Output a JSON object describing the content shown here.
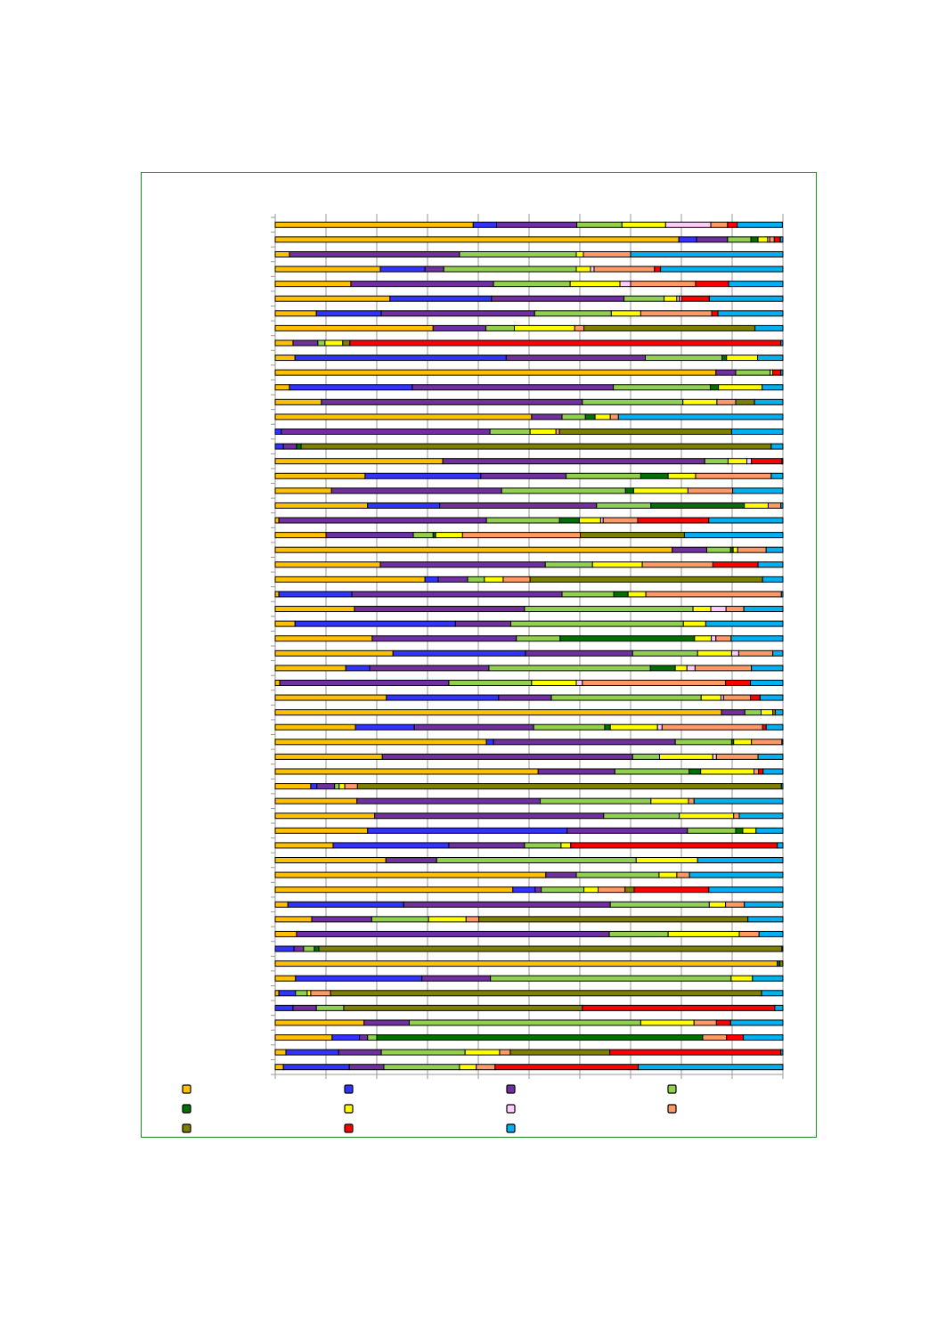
{
  "chart_data": {
    "type": "stacked-bar-horizontal-percent",
    "categories": [
      null,
      null,
      null,
      null,
      null,
      null,
      null,
      null,
      null,
      null,
      null,
      null,
      null,
      null,
      null,
      null,
      null,
      null,
      null,
      null,
      null,
      null,
      null,
      null,
      null,
      null,
      null,
      null,
      null,
      null,
      null,
      null,
      null,
      null,
      null,
      null,
      null,
      null,
      null,
      null,
      null,
      null,
      null,
      null,
      null,
      null,
      null,
      null,
      null,
      null,
      null,
      null,
      null,
      null,
      null,
      null,
      null,
      null
    ],
    "series": [
      {
        "color": "#FFC000",
        "values": [
          39,
          79.5,
          2.8,
          20.7,
          14.9,
          22.6,
          8.1,
          31.1,
          3.5,
          3.9,
          86.8,
          2.8,
          9.1,
          50.5,
          0,
          0,
          33,
          17.7,
          11.1,
          18.2,
          0.7,
          10,
          78.2,
          20.7,
          29.5,
          0.7,
          15.6,
          3.9,
          19.1,
          23.2,
          13.9,
          0.9,
          21.9,
          87.9,
          15.8,
          41.6,
          21.1,
          51.8,
          7,
          16.1,
          19.6,
          18.2,
          11.4,
          21.8,
          53.3,
          46.8,
          2.5,
          7.2,
          4.2,
          0,
          98.9,
          4,
          0.7,
          0,
          17.5,
          11.2,
          2.1,
          1.6
        ]
      },
      {
        "color": "#3333FF",
        "values": [
          4.6,
          3.5,
          0,
          8.8,
          0,
          20,
          12.8,
          0,
          0,
          41.6,
          0,
          24.2,
          0,
          0,
          1.2,
          1.6,
          0,
          22.8,
          0,
          14.2,
          0,
          0,
          0,
          0,
          2.6,
          14.4,
          0,
          31.6,
          0,
          26.1,
          4.7,
          0,
          22.1,
          0,
          11.6,
          1.4,
          0,
          0,
          1.2,
          0,
          0,
          39.3,
          22.8,
          0,
          0,
          4.4,
          22.8,
          0,
          0,
          3.7,
          0,
          24.9,
          3.3,
          3.5,
          0,
          5.4,
          10.4,
          13
        ]
      },
      {
        "color": "#7030A0",
        "values": [
          15.8,
          6.1,
          33.5,
          3.7,
          28.1,
          26.1,
          30.2,
          10.4,
          4.9,
          27.4,
          3.9,
          39.6,
          51.4,
          6,
          41.1,
          2.6,
          51.6,
          16.8,
          33.5,
          30.9,
          40.9,
          17.2,
          6.8,
          32.5,
          5.8,
          41.4,
          33.5,
          10.9,
          28.4,
          21.1,
          23.5,
          33.3,
          10.4,
          4.6,
          23.5,
          35.8,
          49.3,
          15.1,
          3.5,
          36.1,
          45.1,
          23.7,
          14.9,
          10,
          6,
          1.2,
          40.7,
          11.8,
          61.6,
          1.9,
          0,
          13.5,
          0,
          4.6,
          8.9,
          1.6,
          8.4,
          6.8
        ]
      },
      {
        "color": "#92D050",
        "values": [
          8.9,
          4.6,
          23,
          26.1,
          15.1,
          7.9,
          15.1,
          5.6,
          1.4,
          15.1,
          6.8,
          19.1,
          19.8,
          4.6,
          7.9,
          0,
          4.6,
          14.7,
          24.4,
          10.7,
          14.4,
          3.9,
          4.7,
          9.3,
          3.3,
          10.2,
          33.2,
          34,
          8.6,
          12.8,
          31.8,
          16.3,
          29.5,
          3.2,
          14,
          11.1,
          5.3,
          14.6,
          0.9,
          21.8,
          14.9,
          9.5,
          7.2,
          39.3,
          16.3,
          8.4,
          19.5,
          11.2,
          11.6,
          2.1,
          0,
          47.4,
          2.3,
          5.4,
          45.6,
          1.8,
          16.5,
          14.9
        ]
      },
      {
        "color": "#007000",
        "values": [
          0,
          1.4,
          0,
          0,
          0,
          0,
          0,
          0,
          0,
          0.9,
          0,
          1.6,
          0,
          1.9,
          0,
          0.9,
          0,
          5.4,
          1.6,
          18.4,
          3.9,
          0.5,
          0.5,
          0,
          0,
          2.8,
          0,
          0,
          26.5,
          0,
          4.9,
          0,
          0,
          0,
          1.1,
          0.4,
          0,
          2.3,
          0,
          0,
          0,
          1.4,
          0,
          0,
          0,
          0,
          0,
          0,
          0,
          0.9,
          0.5,
          0,
          0,
          0,
          0,
          64.2,
          0,
          0
        ]
      },
      {
        "color": "#FFFF00",
        "values": [
          8.6,
          1.9,
          1.4,
          2.8,
          9.8,
          2.5,
          5.8,
          11.9,
          3.5,
          6.1,
          0.5,
          8.6,
          6.7,
          3,
          5.1,
          0,
          3.7,
          5.4,
          10.7,
          4.7,
          4.2,
          5.3,
          0.9,
          9.8,
          3.7,
          3.5,
          3.5,
          4.4,
          3.3,
          6.7,
          2.3,
          8.8,
          3.9,
          2.3,
          9.3,
          3.5,
          10.5,
          10.5,
          1.1,
          7.4,
          10.7,
          2.6,
          1.9,
          12.1,
          3.5,
          2.8,
          3.2,
          7.4,
          14,
          0,
          0,
          4.2,
          0.7,
          0,
          10.5,
          0,
          6.8,
          3.3
        ]
      },
      {
        "color": "#FFCCFF",
        "values": [
          8.9,
          0.4,
          0,
          0.7,
          2.1,
          0.5,
          0,
          0,
          0,
          0,
          0,
          0,
          0,
          0,
          0,
          0,
          0.9,
          0,
          0,
          0,
          0.5,
          0,
          0,
          0,
          0,
          0,
          3,
          0,
          0.9,
          1.4,
          1.6,
          1.2,
          0.5,
          0,
          0.9,
          0,
          0.7,
          0,
          0,
          0,
          0,
          0,
          0,
          0,
          0,
          0,
          0,
          0,
          0,
          0,
          0,
          0,
          0,
          0,
          0,
          0,
          0,
          0
        ]
      },
      {
        "color": "#FF9966",
        "values": [
          3.3,
          0.9,
          9.3,
          11.9,
          12.8,
          0.5,
          14,
          1.8,
          0,
          0,
          0,
          0,
          3.7,
          1.6,
          0.7,
          0,
          0,
          14.9,
          8.8,
          2.5,
          6.8,
          23.2,
          5.6,
          13.9,
          5.3,
          26.7,
          3.5,
          0,
          3,
          6.7,
          11.1,
          28.2,
          5.3,
          0,
          19.8,
          6,
          8.2,
          0.9,
          2.5,
          1.1,
          1.1,
          0,
          0,
          0,
          2.5,
          5.3,
          3.7,
          2.5,
          3.9,
          0,
          0,
          0,
          3.9,
          0,
          4.4,
          4.7,
          2.1,
          3.7
        ]
      },
      {
        "color": "#808000",
        "values": [
          0,
          0,
          0,
          0,
          0,
          0,
          0,
          33.7,
          1.4,
          0,
          0,
          0,
          3.7,
          0,
          33.9,
          92.6,
          0,
          0,
          0,
          0,
          0,
          20.5,
          0,
          0,
          45.8,
          0,
          0,
          0,
          0,
          0,
          0,
          0,
          0,
          0.5,
          0,
          0,
          0,
          0,
          83.5,
          0,
          0,
          0,
          0,
          0,
          0,
          1.8,
          0,
          53,
          0,
          91.2,
          0.6,
          0,
          84.9,
          47,
          0,
          0,
          19.6,
          0
        ]
      },
      {
        "color": "#FF0000",
        "values": [
          1.9,
          1.2,
          0,
          1.2,
          6.5,
          5.4,
          1.2,
          0,
          84.9,
          0,
          1.6,
          0,
          0,
          0,
          0,
          0,
          6,
          0,
          0,
          0,
          14,
          0,
          0,
          8.9,
          0,
          0,
          0,
          0,
          0,
          0,
          0,
          4.9,
          1.9,
          0,
          0.7,
          0,
          0,
          0.9,
          0,
          0,
          0,
          0,
          40.7,
          0,
          0,
          14.7,
          0,
          0,
          0,
          0,
          0,
          0,
          0,
          37.9,
          2.8,
          3.3,
          33.7,
          28.2
        ]
      },
      {
        "color": "#00B0F0",
        "values": [
          8.9,
          0.5,
          30,
          24.1,
          10.7,
          14.5,
          12.8,
          5.5,
          0.4,
          5,
          0.4,
          4.1,
          5.6,
          32.4,
          10.1,
          2.3,
          0.2,
          2.3,
          9.9,
          0.4,
          14.6,
          19.4,
          3.3,
          4.9,
          4,
          0.3,
          7.7,
          15.2,
          10.2,
          2,
          6.2,
          6.4,
          4.5,
          1.5,
          3.3,
          0.2,
          4.9,
          3.9,
          0.3,
          17.5,
          8.6,
          5.3,
          1.1,
          16.8,
          18.4,
          14.6,
          7.6,
          6.9,
          4.7,
          0.2,
          0,
          6,
          4.2,
          1.6,
          10.3,
          7.8,
          0.4,
          28.5
        ]
      }
    ],
    "xlim": [
      0,
      100
    ],
    "xticks": [
      0,
      10,
      20,
      30,
      40,
      50,
      60,
      70,
      80,
      90,
      100
    ],
    "grid": true,
    "legend": "bottom"
  }
}
